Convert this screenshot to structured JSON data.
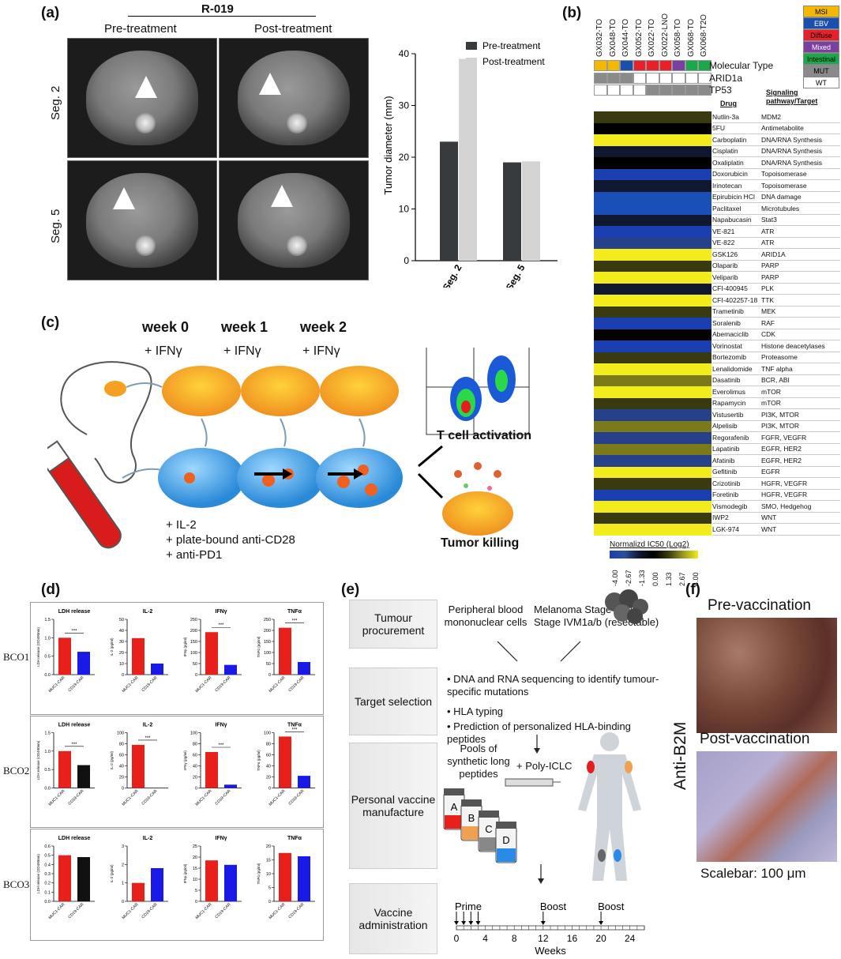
{
  "panel_a": {
    "label": "(a)",
    "patient": "R-019",
    "col_pre": "Pre-treatment",
    "col_post": "Post-treatment",
    "row_seg2": "Seg. 2",
    "row_seg5": "Seg. 5"
  },
  "chart_data": {
    "type": "bar",
    "categories": [
      "Seg. 2",
      "Seg. 5"
    ],
    "series": [
      {
        "name": "Pre-treatment",
        "values": [
          23,
          19
        ],
        "color": "#373b3e"
      },
      {
        "name": "Post-treatment",
        "values": [
          39,
          19.2
        ],
        "color": "#d4d4d4"
      }
    ],
    "ylabel": "Tumor diameter (mm)",
    "ylim": [
      0,
      40
    ],
    "yticks": [
      0,
      10,
      20,
      30,
      40
    ],
    "legend": "top-right"
  },
  "panel_b": {
    "label": "(b)",
    "samples": [
      "GX032-TO",
      "GX048-TO",
      "GX044-TO",
      "GX052-TO",
      "GX022-TO",
      "GX022-LNO",
      "GX058-TO",
      "GX068-TO",
      "GX068-T2O"
    ],
    "row_labels": [
      "Molecular Type",
      "ARID1a",
      "TP53"
    ],
    "legend": [
      {
        "name": "MSI",
        "color": "#f5b800"
      },
      {
        "name": "EBV",
        "color": "#1a4fb0"
      },
      {
        "name": "Diffuse",
        "color": "#e8202a"
      },
      {
        "name": "Mixed",
        "color": "#7a3fa0"
      },
      {
        "name": "Intestinal",
        "color": "#1aa84a"
      },
      {
        "name": "MUT",
        "color": "#8a8a8a"
      },
      {
        "name": "WT",
        "color": "#ffffff"
      }
    ],
    "drug_header": "Drug",
    "target_header": "Signaling pathway/Target",
    "drugs": [
      {
        "drug": "Nutlin-3a",
        "target": "MDM2"
      },
      {
        "drug": "5FU",
        "target": "Antimetabolite"
      },
      {
        "drug": "Carboplatin",
        "target": "DNA/RNA Synthesis"
      },
      {
        "drug": "Cisplatin",
        "target": "DNA/RNA Synthesis"
      },
      {
        "drug": "Oxaliplatin",
        "target": "DNA/RNA Synthesis"
      },
      {
        "drug": "Doxorubicin",
        "target": "Topoisomerase"
      },
      {
        "drug": "Irinotecan",
        "target": "Topoisomerase"
      },
      {
        "drug": "Epirubicin HCl",
        "target": "DNA damage"
      },
      {
        "drug": "Paclitaxel",
        "target": "Microtubules"
      },
      {
        "drug": "Napabucasin",
        "target": "Stat3"
      },
      {
        "drug": "VE-821",
        "target": "ATR"
      },
      {
        "drug": "VE-822",
        "target": "ATR"
      },
      {
        "drug": "GSK126",
        "target": "ARID1A"
      },
      {
        "drug": "Olaparib",
        "target": "PARP"
      },
      {
        "drug": "Veliparib",
        "target": "PARP"
      },
      {
        "drug": "CFI-400945",
        "target": "PLK"
      },
      {
        "drug": "CFI-402257-18",
        "target": "TTK"
      },
      {
        "drug": "Trametinib",
        "target": "MEK"
      },
      {
        "drug": "Soralenib",
        "target": "RAF"
      },
      {
        "drug": "Abemaciclib",
        "target": "CDK"
      },
      {
        "drug": "Vorinostat",
        "target": "Histone deacetylases"
      },
      {
        "drug": "Bortezomib",
        "target": "Proteasome"
      },
      {
        "drug": "Lenalidomide",
        "target": "TNF alpha"
      },
      {
        "drug": "Dasatinib",
        "target": "BCR, ABI"
      },
      {
        "drug": "Everolimus",
        "target": "mTOR"
      },
      {
        "drug": "Rapamycin",
        "target": "mTOR"
      },
      {
        "drug": "Vistusertib",
        "target": "PI3K, MTOR"
      },
      {
        "drug": "Alpelisib",
        "target": "PI3K, MTOR"
      },
      {
        "drug": "Regorafenib",
        "target": "FGFR, VEGFR"
      },
      {
        "drug": "Lapatinib",
        "target": "EGFR, HER2"
      },
      {
        "drug": "Afatinib",
        "target": "EGFR, HER2"
      },
      {
        "drug": "Gefitinib",
        "target": "EGFR"
      },
      {
        "drug": "Crizotinib",
        "target": "HGFR, VEGFR"
      },
      {
        "drug": "Foretinib",
        "target": "HGFR, VEGFR"
      },
      {
        "drug": "Vismodegib",
        "target": "SMO, Hedgehog"
      },
      {
        "drug": "IWP2",
        "target": "WNT"
      },
      {
        "drug": "LGK-974",
        "target": "WNT"
      }
    ],
    "scale_title": "Normalizd IC50 (Log2)",
    "scale_ticks": [
      "-4.00",
      "-2.67",
      "-1.33",
      "0.00",
      "1.33",
      "2.67",
      "4.00"
    ]
  },
  "panel_c": {
    "label": "(c)",
    "weeks": [
      "week 0",
      "week 1",
      "week 2"
    ],
    "ifn": "+ IFNγ",
    "additives": [
      "+ IL-2",
      "+ plate-bound anti-CD28",
      "+ anti-PD1"
    ],
    "outcome1": "T cell activation",
    "outcome2": "Tumor killing"
  },
  "panel_d": {
    "label": "(d)",
    "rows": [
      {
        "name": "BCO1",
        "plots": [
          {
            "title": "LDH release",
            "ylabel": "LDH release (OD490nm)",
            "ymax": 1.5,
            "ticks": [
              "0.0",
              "0.5",
              "1.0",
              "1.5"
            ],
            "values": [
              1.0,
              0.62
            ],
            "colors": [
              "#e8201c",
              "#1a1ae8"
            ],
            "sig": "***"
          },
          {
            "title": "IL-2",
            "ylabel": "IL-2 (pg/ml)",
            "ymax": 50,
            "ticks": [
              "0",
              "10",
              "20",
              "30",
              "40",
              "50"
            ],
            "values": [
              33,
              10
            ],
            "colors": [
              "#e8201c",
              "#1a1ae8"
            ],
            "sig": ""
          },
          {
            "title": "IFNγ",
            "ylabel": "IFNγ (pg/ml)",
            "ymax": 250,
            "ticks": [
              "0",
              "50",
              "100",
              "150",
              "200",
              "250"
            ],
            "values": [
              192,
              44
            ],
            "colors": [
              "#e8201c",
              "#1a1ae8"
            ],
            "sig": "***"
          },
          {
            "title": "TNFα",
            "ylabel": "TNFα (pg/ml)",
            "ymax": 250,
            "ticks": [
              "0",
              "50",
              "100",
              "150",
              "200",
              "250"
            ],
            "values": [
              212,
              57
            ],
            "colors": [
              "#e8201c",
              "#1a1ae8"
            ],
            "sig": "***"
          }
        ]
      },
      {
        "name": "BCO2",
        "plots": [
          {
            "title": "LDH release",
            "ylabel": "LDH release (OD490nm)",
            "ymax": 1.5,
            "ticks": [
              "0.0",
              "0.5",
              "1.0",
              "1.5"
            ],
            "values": [
              1.0,
              0.62
            ],
            "colors": [
              "#e8201c",
              "#111111"
            ],
            "sig": "***"
          },
          {
            "title": "IL-2",
            "ylabel": "IL-2 (pg/ml)",
            "ymax": 100,
            "ticks": [
              "0",
              "20",
              "40",
              "60",
              "80",
              "100"
            ],
            "values": [
              78,
              0
            ],
            "colors": [
              "#e8201c",
              "#1a1ae8"
            ],
            "sig": "***"
          },
          {
            "title": "IFNγ",
            "ylabel": "IFNγ (pg/ml)",
            "ymax": 100,
            "ticks": [
              "0",
              "20",
              "40",
              "60",
              "80",
              "100"
            ],
            "values": [
              65,
              6
            ],
            "colors": [
              "#e8201c",
              "#1a1ae8"
            ],
            "sig": "***"
          },
          {
            "title": "TNFα",
            "ylabel": "TNFα (pg/ml)",
            "ymax": 100,
            "ticks": [
              "0",
              "20",
              "40",
              "60",
              "80",
              "100"
            ],
            "values": [
              93,
              22
            ],
            "colors": [
              "#e8201c",
              "#1a1ae8"
            ],
            "sig": "***"
          }
        ]
      },
      {
        "name": "BCO3",
        "plots": [
          {
            "title": "LDH release",
            "ylabel": "LDH release (OD490nm)",
            "ymax": 0.6,
            "ticks": [
              "0.0",
              "0.1",
              "0.2",
              "0.3",
              "0.4",
              "0.5",
              "0.6"
            ],
            "values": [
              0.5,
              0.48
            ],
            "colors": [
              "#e8201c",
              "#111111"
            ],
            "sig": ""
          },
          {
            "title": "IL-2",
            "ylabel": "IL-2 (pg/ml)",
            "ymax": 3,
            "ticks": [
              "0",
              "1",
              "2",
              "3"
            ],
            "values": [
              1.0,
              1.8
            ],
            "colors": [
              "#e8201c",
              "#1a1ae8"
            ],
            "sig": ""
          },
          {
            "title": "IFNγ",
            "ylabel": "IFNγ (pg/ml)",
            "ymax": 25,
            "ticks": [
              "0",
              "5",
              "10",
              "15",
              "20",
              "25"
            ],
            "values": [
              18.5,
              16.5
            ],
            "colors": [
              "#e8201c",
              "#1a1ae8"
            ],
            "sig": ""
          },
          {
            "title": "TNFα",
            "ylabel": "TNFα (pg/ml)",
            "ymax": 20,
            "ticks": [
              "0",
              "5",
              "10",
              "15",
              "20"
            ],
            "values": [
              17.5,
              16.3
            ],
            "colors": [
              "#e8201c",
              "#1a1ae8"
            ],
            "sig": ""
          }
        ]
      }
    ],
    "xlabels": [
      "MUC1-CAR",
      "CD19-CAR"
    ]
  },
  "panel_e": {
    "label": "(e)",
    "steps": [
      "Tumour procurement",
      "Target selection",
      "Personal vaccine manufacture",
      "Vaccine administration"
    ],
    "pbmc": "Peripheral blood mononuclear cells",
    "melanoma": "Melanoma Stage IIIB/C Stage IVM1a/b (resectable)",
    "bullets": [
      "DNA and RNA sequencing to identify tumour-specific mutations",
      "HLA typing",
      "Prediction of personalized HLA-binding peptides"
    ],
    "pools": "Pools of synthetic long peptides",
    "adjuvant": "+ Poly-ICLC",
    "vials": [
      "A",
      "B",
      "C",
      "D"
    ],
    "prime": "Prime",
    "boost1": "Boost",
    "boost2": "Boost",
    "week_ticks": [
      "0",
      "4",
      "8",
      "12",
      "16",
      "20",
      "24"
    ],
    "xlabel": "Weeks"
  },
  "panel_f": {
    "label": "(f)",
    "pre": "Pre-vaccination",
    "post": "Post-vaccination",
    "stain": "Anti-B2M",
    "scalebar": "Scalebar: 100 μm"
  }
}
